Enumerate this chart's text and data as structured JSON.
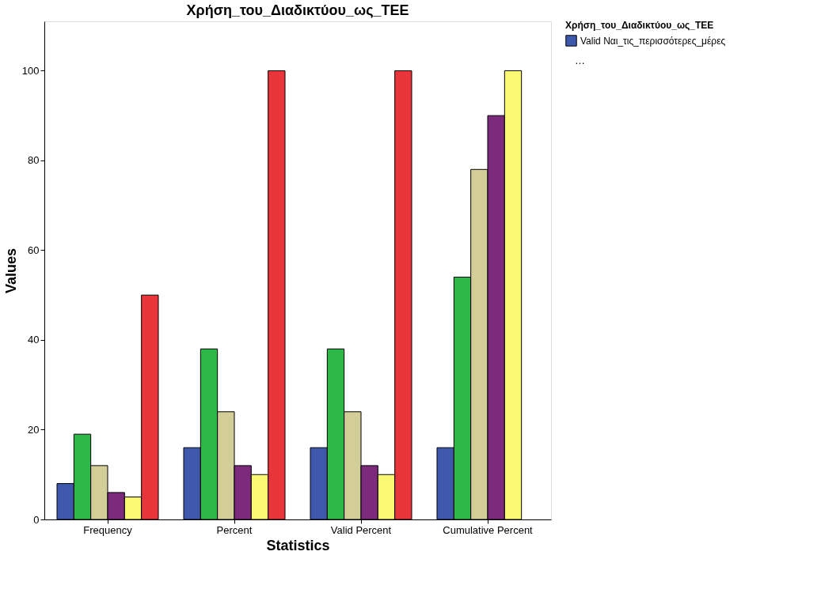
{
  "chart_data": {
    "type": "bar",
    "title": "Χρήση_του_Διαδικτύου_ως_TEE",
    "xlabel": "Statistics",
    "ylabel": "Values",
    "legend_title": "Χρήση_του_Διαδικτύου_ως_TEE",
    "categories": [
      "Frequency",
      "Percent",
      "Valid Percent",
      "Cumulative Percent"
    ],
    "series": [
      {
        "name": "Valid Ναι_τις_περισσότερες_μέρες",
        "color": "#3e58ac",
        "values": [
          8,
          16,
          16,
          16
        ]
      },
      {
        "color": "#2eb848",
        "values": [
          19,
          38,
          38,
          54
        ]
      },
      {
        "color": "#d3ce97",
        "values": [
          12,
          24,
          24,
          78
        ]
      },
      {
        "color": "#7b2a7c",
        "values": [
          6,
          12,
          12,
          90
        ]
      },
      {
        "color": "#fbf873",
        "values": [
          5,
          10,
          10,
          100
        ]
      },
      {
        "color": "#e8353a",
        "values": [
          50,
          100,
          100,
          null
        ]
      }
    ],
    "ylim": [
      0,
      111
    ],
    "yticks": [
      0,
      20,
      40,
      60,
      80,
      100
    ],
    "grid": false,
    "legend": "top right",
    "annotations": [
      "…"
    ]
  }
}
